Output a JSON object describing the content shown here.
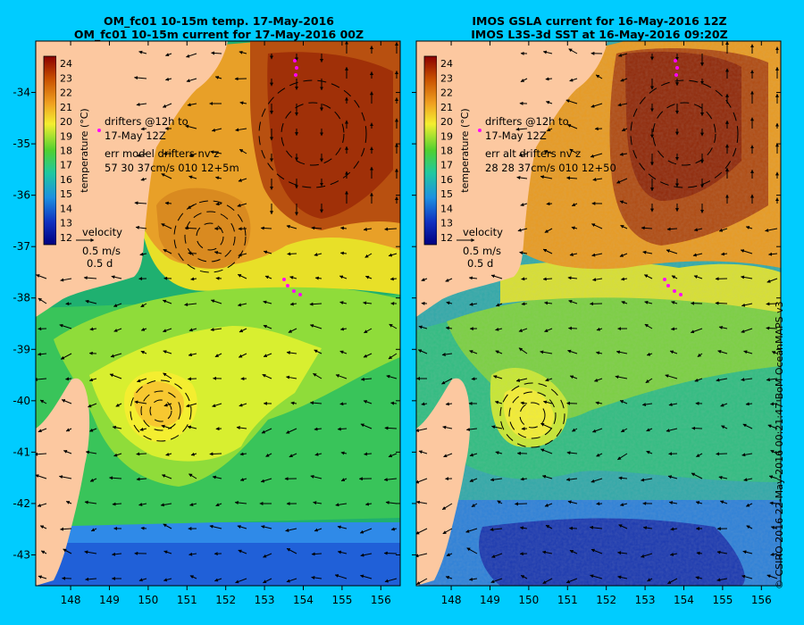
{
  "left_panel": {
    "title_line1": "OM_fc01 10-15m temp. 17-May-2016",
    "title_line2": "OM_fc01 10-15m current for 17-May-2016 00Z",
    "drifters_line1": "drifters @12h to",
    "drifters_line2": "17-May 12Z",
    "err_line1": "err model drifters nv z",
    "err_line2": "57 30 37cm/s 010 12+5m"
  },
  "right_panel": {
    "title_line1": "IMOS GSLA current for 16-May-2016 12Z",
    "title_line2": "IMOS L3S-3d SST at 16-May-2016 09:20Z",
    "drifters_line1": "drifters @12h to",
    "drifters_line2": "17-May 12Z",
    "err_line1": "err alt drifters nv z",
    "err_line2": "28 28 37cm/s 010 12+50"
  },
  "colorbar": {
    "label": "temperature (°C)",
    "ticks": [
      24,
      23,
      22,
      21,
      20,
      19,
      18,
      17,
      16,
      15,
      14,
      13,
      12
    ],
    "min": 11.5,
    "max": 24.5
  },
  "velocity_key": {
    "title": "velocity",
    "speed": "0.5 m/s",
    "duration": "0.5 d"
  },
  "axes": {
    "lon_ticks": [
      148,
      149,
      150,
      151,
      152,
      153,
      154,
      155,
      156
    ],
    "lat_ticks": [
      -34,
      -35,
      -36,
      -37,
      -38,
      -39,
      -40,
      -41,
      -42,
      -43
    ],
    "lon_range": [
      147.1,
      156.5
    ],
    "lat_range": [
      -43.6,
      -33.0
    ]
  },
  "credit": "© CSIRO 2016   22-May-2016 00:21:47 BoM OceanMAPS v3",
  "colors": {
    "background": "#00ccff",
    "land": "#fcc8a0",
    "drifters": "#ff00ff"
  }
}
